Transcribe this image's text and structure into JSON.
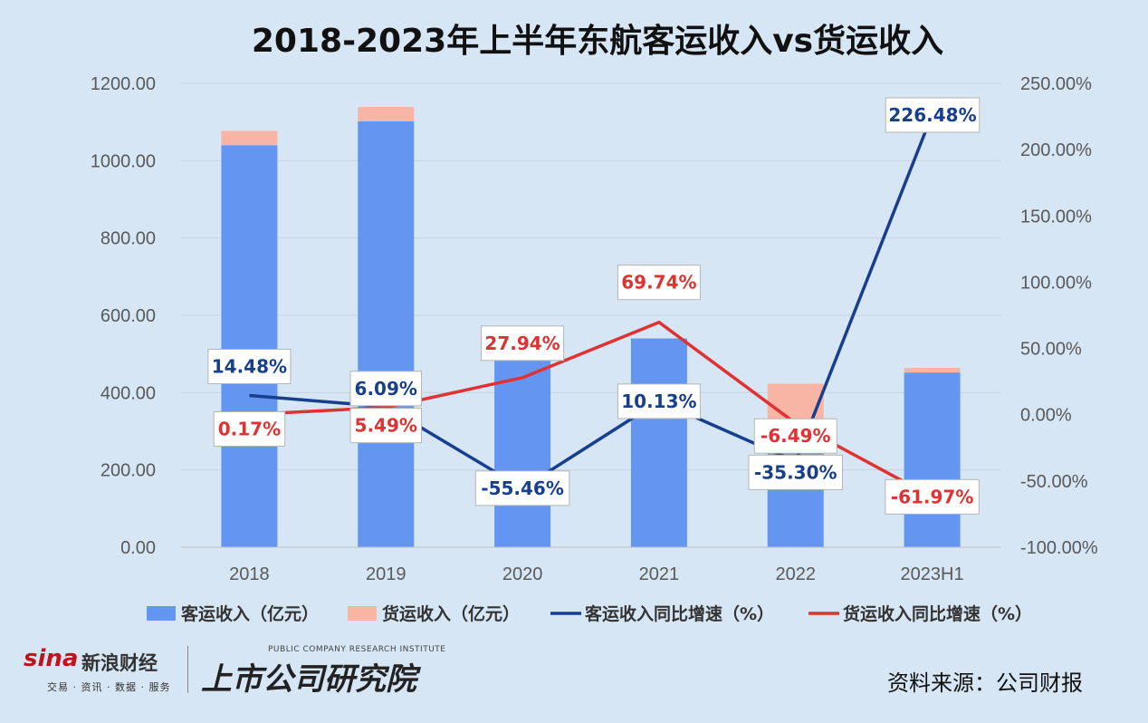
{
  "title": "2018-2023年上半年东航客运收入vs货运收入",
  "chart_data": {
    "type": "bar",
    "categories": [
      "2018",
      "2019",
      "2020",
      "2021",
      "2022",
      "2023H1"
    ],
    "series": [
      {
        "name": "客运收入（亿元）",
        "kind": "stacked-bar",
        "axis": "left",
        "color": "#6495f0",
        "values": [
          1040,
          1102,
          484,
          540,
          315,
          452
        ]
      },
      {
        "name": "货运收入（亿元）",
        "kind": "stacked-bar",
        "axis": "left",
        "color": "#f8b5a5",
        "values": [
          37,
          37,
          54,
          0,
          108,
          12
        ]
      },
      {
        "name": "客运收入同比增速（%）",
        "kind": "line",
        "axis": "right",
        "color": "#173f8e",
        "values": [
          14.48,
          6.09,
          -55.46,
          10.13,
          -35.3,
          226.48
        ],
        "labels": [
          "14.48%",
          "6.09%",
          "-55.46%",
          "10.13%",
          "-35.30%",
          "226.48%"
        ]
      },
      {
        "name": "货运收入同比增速（%）",
        "kind": "line",
        "axis": "right",
        "color": "#e03232",
        "values": [
          0.17,
          5.49,
          27.94,
          69.74,
          -6.49,
          -61.97
        ],
        "labels": [
          "0.17%",
          "5.49%",
          "27.94%",
          "69.74%",
          "-6.49%",
          "-61.97%"
        ]
      }
    ],
    "left_axis": {
      "ylim": [
        0,
        1200
      ],
      "ticks": [
        "0.00",
        "200.00",
        "400.00",
        "600.00",
        "800.00",
        "1000.00",
        "1200.00"
      ]
    },
    "right_axis": {
      "ylim": [
        -100,
        250
      ],
      "ticks": [
        "-100.00%",
        "-50.00%",
        "0.00%",
        "50.00%",
        "100.00%",
        "150.00%",
        "200.00%",
        "250.00%"
      ]
    },
    "grid": true,
    "legend_position": "bottom"
  },
  "footer": {
    "sina_logo": "sina",
    "sina_name": "新浪财经",
    "sina_tagline": "交易 · 资讯 · 数据 · 服务",
    "institute_en": "PUBLIC COMPANY RESEARCH INSTITUTE",
    "institute_cn": "上市公司研究院",
    "source": "资料来源：公司财报"
  }
}
